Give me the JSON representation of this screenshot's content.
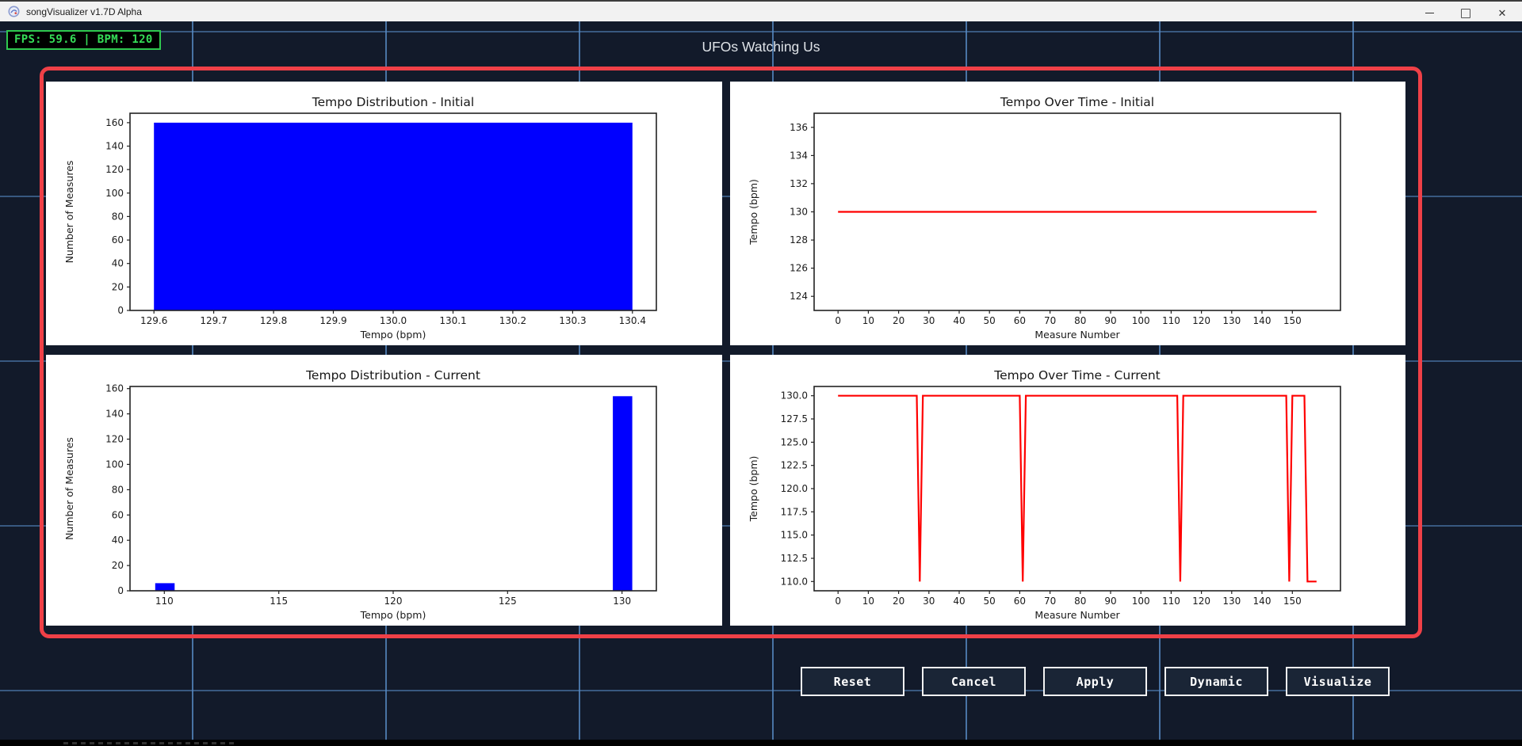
{
  "window": {
    "title": "songVisualizer v1.7D Alpha",
    "minimize_glyph": "",
    "close_glyph": "✕"
  },
  "hud": {
    "fps_bpm_text": "FPS: 59.6 | BPM: 120"
  },
  "page_title": "UFOs Watching Us",
  "toolbar": {
    "buttons": [
      {
        "label": "Reset"
      },
      {
        "label": "Cancel"
      },
      {
        "label": "Apply"
      },
      {
        "label": "Dynamic"
      },
      {
        "label": "Visualize"
      }
    ]
  },
  "colors": {
    "background": "#121a2a",
    "grid_line": "#588cc6",
    "panel_border": "#ef4047",
    "card_bg": "#ffffff",
    "bar_blue": "#0000ff",
    "line_red": "#ff0000",
    "hud_green": "#35dd57",
    "titlebar_bg": "#f2f2f2"
  },
  "chart_data": [
    {
      "type": "bar",
      "title": "Tempo Distribution - Initial",
      "xlabel": "Tempo (bpm)",
      "ylabel": "Number of Measures",
      "xlim": [
        129.56,
        130.44
      ],
      "ylim": [
        0,
        168
      ],
      "xticks": [
        129.6,
        129.7,
        129.8,
        129.9,
        130.0,
        130.1,
        130.2,
        130.3,
        130.4
      ],
      "xtick_labels": [
        "129.6",
        "129.7",
        "129.8",
        "129.9",
        "130.0",
        "130.1",
        "130.2",
        "130.3",
        "130.4"
      ],
      "yticks": [
        0,
        20,
        40,
        60,
        80,
        100,
        120,
        140,
        160
      ],
      "ytick_labels": [
        "0",
        "20",
        "40",
        "60",
        "80",
        "100",
        "120",
        "140",
        "160"
      ],
      "bars": [
        {
          "x0": 129.6,
          "x1": 130.4,
          "height": 160
        }
      ],
      "bar_color": "#0000ff",
      "grid": false,
      "legend": null
    },
    {
      "type": "line",
      "title": "Tempo Over Time - Initial",
      "xlabel": "Measure Number",
      "ylabel": "Tempo (bpm)",
      "xlim": [
        -7.9,
        165.9
      ],
      "ylim": [
        123,
        137
      ],
      "xticks": [
        0,
        10,
        20,
        30,
        40,
        50,
        60,
        70,
        80,
        90,
        100,
        110,
        120,
        130,
        140,
        150
      ],
      "xtick_labels": [
        "0",
        "10",
        "20",
        "30",
        "40",
        "50",
        "60",
        "70",
        "80",
        "90",
        "100",
        "110",
        "120",
        "130",
        "140",
        "150"
      ],
      "yticks": [
        124,
        126,
        128,
        130,
        132,
        134,
        136
      ],
      "ytick_labels": [
        "124",
        "126",
        "128",
        "130",
        "132",
        "134",
        "136"
      ],
      "points": [
        [
          0,
          130
        ],
        [
          158,
          130
        ]
      ],
      "line_color": "#ff0000",
      "grid": false,
      "legend": null
    },
    {
      "type": "bar",
      "title": "Tempo Distribution - Current",
      "xlabel": "Tempo (bpm)",
      "ylabel": "Number of Measures",
      "xlim": [
        108.5,
        131.5
      ],
      "ylim": [
        0,
        161.7
      ],
      "xticks": [
        110,
        115,
        120,
        125,
        130
      ],
      "xtick_labels": [
        "110",
        "115",
        "120",
        "125",
        "130"
      ],
      "yticks": [
        0,
        20,
        40,
        60,
        80,
        100,
        120,
        140,
        160
      ],
      "ytick_labels": [
        "0",
        "20",
        "40",
        "60",
        "80",
        "100",
        "120",
        "140",
        "160"
      ],
      "bars": [
        {
          "x0": 109.6,
          "x1": 110.45,
          "height": 6
        },
        {
          "x0": 129.6,
          "x1": 130.45,
          "height": 154
        }
      ],
      "bar_color": "#0000ff",
      "grid": false,
      "legend": null
    },
    {
      "type": "line",
      "title": "Tempo Over Time - Current",
      "xlabel": "Measure Number",
      "ylabel": "Tempo (bpm)",
      "xlim": [
        -7.9,
        165.9
      ],
      "ylim": [
        109,
        131
      ],
      "xticks": [
        0,
        10,
        20,
        30,
        40,
        50,
        60,
        70,
        80,
        90,
        100,
        110,
        120,
        130,
        140,
        150
      ],
      "xtick_labels": [
        "0",
        "10",
        "20",
        "30",
        "40",
        "50",
        "60",
        "70",
        "80",
        "90",
        "100",
        "110",
        "120",
        "130",
        "140",
        "150"
      ],
      "yticks": [
        110,
        112.5,
        115,
        117.5,
        120,
        122.5,
        125,
        127.5,
        130
      ],
      "ytick_labels": [
        "110.0",
        "112.5",
        "115.0",
        "117.5",
        "120.0",
        "122.5",
        "125.0",
        "127.5",
        "130.0"
      ],
      "points": [
        [
          0,
          130
        ],
        [
          26,
          130
        ],
        [
          27,
          110
        ],
        [
          28,
          130
        ],
        [
          60,
          130
        ],
        [
          61,
          110
        ],
        [
          62,
          130
        ],
        [
          112,
          130
        ],
        [
          113,
          110
        ],
        [
          114,
          130
        ],
        [
          148,
          130
        ],
        [
          149,
          110
        ],
        [
          150,
          130
        ],
        [
          154,
          130
        ],
        [
          155,
          110
        ],
        [
          158,
          110
        ]
      ],
      "line_color": "#ff0000",
      "grid": false,
      "legend": null
    }
  ]
}
